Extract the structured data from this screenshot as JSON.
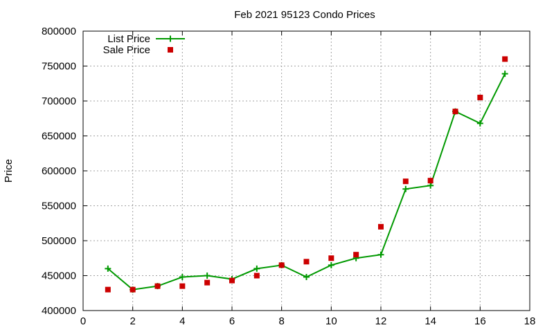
{
  "chart_data": {
    "type": "line",
    "title": "Feb 2021 95123 Condo Prices",
    "xlabel": "",
    "ylabel": "Price",
    "xlim": [
      0,
      18
    ],
    "ylim": [
      400000,
      800000
    ],
    "xticks": [
      "0",
      "2",
      "4",
      "6",
      "8",
      "10",
      "12",
      "14",
      "16",
      "18"
    ],
    "yticks": [
      "400000",
      "450000",
      "500000",
      "550000",
      "600000",
      "650000",
      "700000",
      "750000",
      "800000"
    ],
    "grid": true,
    "legend_position": "top-left",
    "series": [
      {
        "name": "List Price",
        "style": "line+plus",
        "color": "#009900",
        "x": [
          1,
          2,
          3,
          4,
          5,
          6,
          7,
          8,
          9,
          10,
          11,
          12,
          13,
          14,
          15,
          16,
          17
        ],
        "y": [
          460000,
          430000,
          435000,
          448000,
          450000,
          445000,
          460000,
          465000,
          448000,
          465000,
          475000,
          480000,
          574000,
          579000,
          685000,
          668000,
          739000
        ]
      },
      {
        "name": "Sale Price",
        "style": "square",
        "color": "#cc0000",
        "x": [
          1,
          2,
          3,
          4,
          5,
          6,
          7,
          8,
          9,
          10,
          11,
          12,
          13,
          14,
          15,
          16,
          17
        ],
        "y": [
          430000,
          430000,
          435000,
          435000,
          440000,
          443000,
          450000,
          465000,
          470000,
          475000,
          480000,
          520000,
          585000,
          586000,
          685000,
          705000,
          760000
        ]
      }
    ]
  }
}
